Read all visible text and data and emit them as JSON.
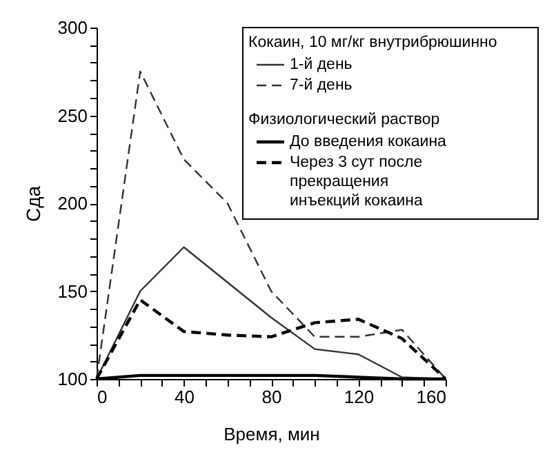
{
  "chart_data": {
    "type": "line",
    "xlabel": "Время, мин",
    "ylabel": "Cдa",
    "legend_title": "Кокаин, 10 мг/кг внутрибрюшинно",
    "annotations": [
      "Физиологический раствор"
    ],
    "legend": "top right",
    "grid": false,
    "marker": "none",
    "x": [
      0,
      20,
      40,
      60,
      80,
      100,
      120,
      140,
      160
    ],
    "xlim": [
      0,
      160
    ],
    "ylim": [
      100,
      300
    ],
    "xticks": [
      0,
      {
        "value": 10,
        "label": null
      },
      {
        "value": 20,
        "label": null
      },
      {
        "value": 30,
        "label": null
      },
      40,
      {
        "value": 50,
        "label": null
      },
      {
        "value": 60,
        "label": null
      },
      {
        "value": 70,
        "label": null
      },
      80,
      {
        "value": 90,
        "label": null
      },
      {
        "value": 100,
        "label": null
      },
      {
        "value": 110,
        "label": null
      },
      120,
      {
        "value": 130,
        "label": null
      },
      {
        "value": 140,
        "label": null
      },
      {
        "value": 150,
        "label": null
      },
      160
    ],
    "yticks": [
      100,
      {
        "value": 110,
        "label": null
      },
      {
        "value": 120,
        "label": null
      },
      {
        "value": 130,
        "label": null
      },
      {
        "value": 140,
        "label": null
      },
      150,
      {
        "value": 160,
        "label": null
      },
      {
        "value": 170,
        "label": null
      },
      {
        "value": 180,
        "label": null
      },
      {
        "value": 190,
        "label": null
      },
      200,
      {
        "value": 210,
        "label": null
      },
      {
        "value": 220,
        "label": null
      },
      {
        "value": 230,
        "label": null
      },
      {
        "value": 240,
        "label": null
      },
      250,
      {
        "value": 260,
        "label": null
      },
      {
        "value": 270,
        "label": null
      },
      {
        "value": 280,
        "label": null
      },
      {
        "value": 290,
        "label": null
      },
      300
    ],
    "series": [
      {
        "name": "1-й день",
        "color": "#333333",
        "line_style": "solid",
        "values": [
          100,
          150,
          175,
          155,
          135,
          117,
          114,
          101,
          100
        ]
      },
      {
        "name": "7-й день",
        "color": "#333333",
        "line_style": "dashed",
        "values": [
          100,
          275,
          225,
          200,
          150,
          124,
          124,
          128,
          100
        ]
      },
      {
        "name": "До введения кокаина",
        "color": "#000000",
        "line_style": "solid",
        "values": [
          100,
          102,
          102,
          102,
          102,
          102,
          101,
          100,
          100
        ]
      },
      {
        "name": "Через 3 сут после\nпрекращения\nинъекций кокаина",
        "color": "#000000",
        "line_style": "dashed",
        "values": [
          100,
          145,
          127,
          125,
          124,
          132,
          134,
          123,
          100
        ]
      }
    ]
  }
}
